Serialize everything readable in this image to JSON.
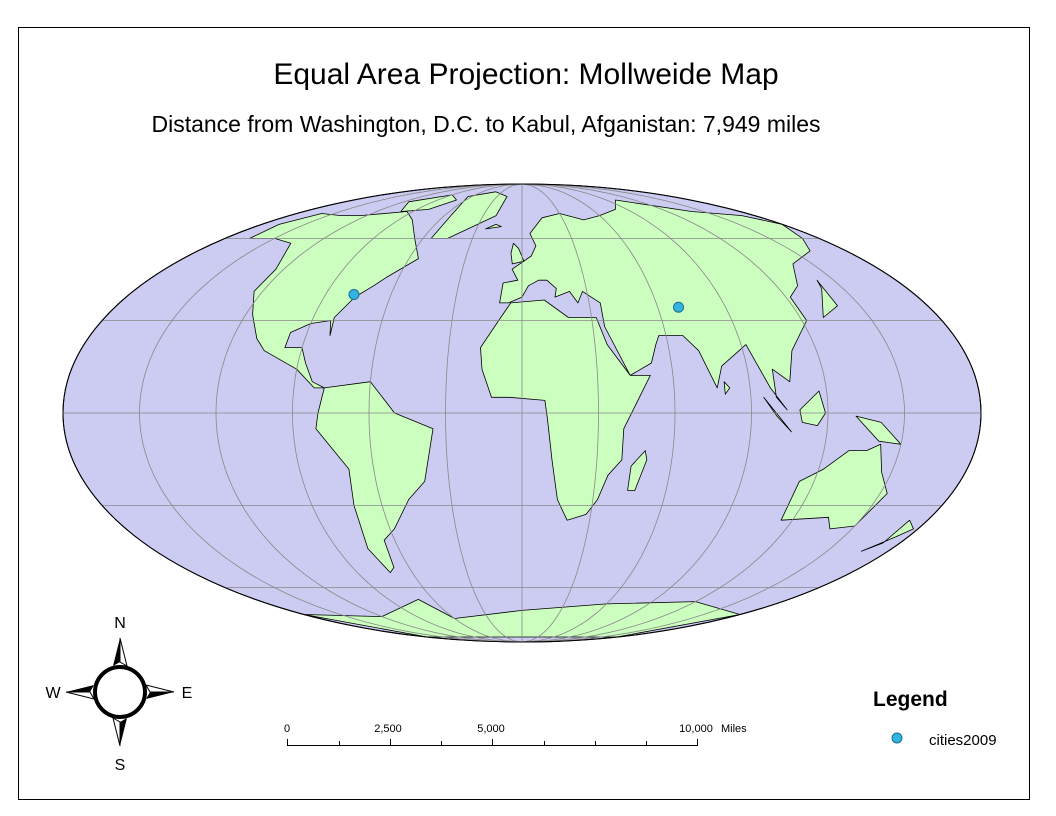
{
  "title": "Equal Area Projection: Mollweide Map",
  "subtitle": "Distance from Washington, D.C. to Kabul, Afganistan: 7,949 miles",
  "compass": {
    "n": "N",
    "e": "E",
    "s": "S",
    "w": "W"
  },
  "scale_bar": {
    "labels": [
      "0",
      "2,500",
      "5,000",
      "10,000"
    ],
    "unit": "Miles"
  },
  "legend": {
    "title": "Legend",
    "items": [
      "cities2009"
    ]
  }
}
